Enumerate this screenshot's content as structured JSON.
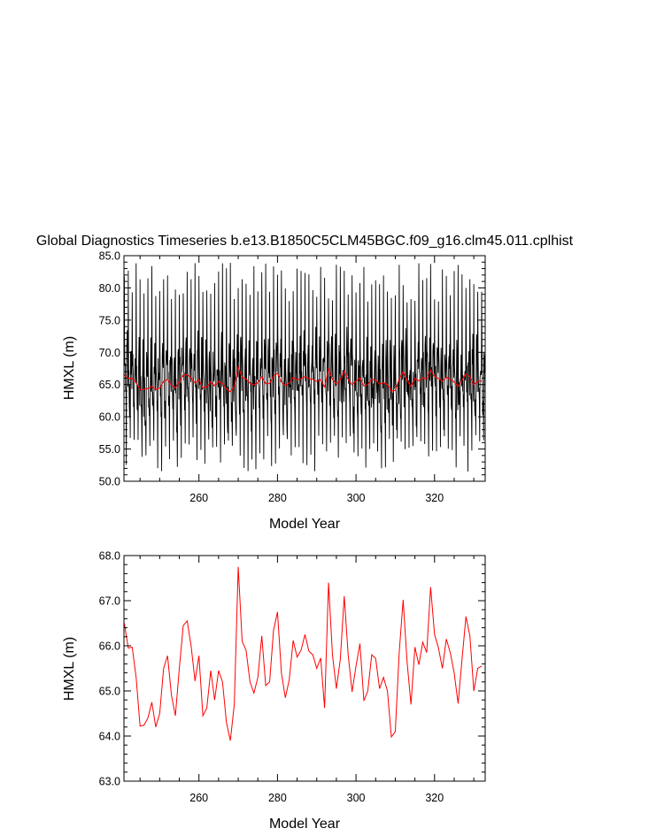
{
  "chart_data": [
    {
      "type": "line",
      "title": "Global Diagnostics Timeseries b.e13.B1850C5CLM45BGC.f09_g16.clm45.011.cplhist",
      "xlabel": "Model Year",
      "ylabel": "HMXL (m)",
      "xlim": [
        240.9,
        332.9
      ],
      "ylim": [
        50.0,
        85.0
      ],
      "x_ticks": [
        260,
        280,
        300,
        320
      ],
      "x_tick_labels": [
        "260",
        "280",
        "300",
        "320"
      ],
      "y_ticks": [
        50,
        55,
        60,
        65,
        70,
        75,
        80,
        85
      ],
      "y_tick_labels": [
        "50.0",
        "55.0",
        "60.0",
        "65.0",
        "70.0",
        "75.0",
        "80.0",
        "85.0"
      ],
      "grid": false,
      "series": [
        {
          "description": "monthly values (black)",
          "color": "#000000",
          "monthly_start_year": 241.0,
          "monthly_end_year": 332.9,
          "approx_monthly_range": [
            51.0,
            84.5
          ],
          "annual_cycle_peak_approx": [
            77.0,
            84.0
          ],
          "annual_cycle_trough_approx": [
            51.0,
            58.0
          ]
        },
        {
          "description": "annual mean (red)",
          "color": "#ff0000",
          "x": [
            241,
            242,
            243,
            244,
            245,
            246,
            247,
            248,
            249,
            250,
            251,
            252,
            253,
            254,
            255,
            256,
            257,
            258,
            259,
            260,
            261,
            262,
            263,
            264,
            265,
            266,
            267,
            268,
            269,
            270,
            271,
            272,
            273,
            274,
            275,
            276,
            277,
            278,
            279,
            280,
            281,
            282,
            283,
            284,
            285,
            286,
            287,
            288,
            289,
            290,
            291,
            292,
            293,
            294,
            295,
            296,
            297,
            298,
            299,
            300,
            301,
            302,
            303,
            304,
            305,
            306,
            307,
            308,
            309,
            310,
            311,
            312,
            313,
            314,
            315,
            316,
            317,
            318,
            319,
            320,
            321,
            322,
            323,
            324,
            325,
            326,
            327,
            328,
            329,
            330,
            331,
            332
          ],
          "values": [
            66.5,
            65.95,
            65.97,
            65.3,
            64.22,
            64.24,
            64.4,
            64.75,
            64.2,
            64.5,
            65.5,
            65.78,
            64.9,
            64.45,
            65.5,
            66.45,
            66.55,
            66.0,
            65.22,
            65.78,
            64.45,
            64.62,
            65.45,
            64.8,
            65.45,
            65.2,
            64.3,
            63.9,
            64.7,
            67.75,
            66.1,
            65.9,
            65.2,
            64.95,
            65.3,
            66.22,
            65.12,
            65.2,
            66.35,
            66.75,
            65.4,
            64.85,
            65.25,
            66.12,
            65.75,
            65.9,
            66.25,
            65.88,
            65.8,
            65.5,
            65.73,
            64.62,
            67.4,
            65.8,
            65.05,
            65.7,
            67.1,
            65.8,
            64.98,
            65.55,
            66.05,
            64.78,
            65.0,
            65.8,
            65.72,
            65.05,
            65.3,
            65.0,
            63.98,
            64.1,
            65.85,
            67.02,
            65.65,
            64.7,
            65.97,
            65.58,
            66.08,
            65.85,
            67.3,
            66.25,
            65.95,
            65.5,
            66.15,
            65.85,
            65.4,
            64.72,
            65.7,
            66.65,
            66.22,
            65.0,
            65.5,
            65.55
          ]
        }
      ]
    },
    {
      "type": "line",
      "title": "",
      "xlabel": "Model Year",
      "ylabel": "HMXL (m)",
      "xlim": [
        240.9,
        332.9
      ],
      "ylim": [
        63.0,
        68.0
      ],
      "x_ticks": [
        260,
        280,
        300,
        320
      ],
      "x_tick_labels": [
        "260",
        "280",
        "300",
        "320"
      ],
      "y_ticks": [
        63,
        64,
        65,
        66,
        67,
        68
      ],
      "y_tick_labels": [
        "63.0",
        "64.0",
        "65.0",
        "66.0",
        "67.0",
        "68.0"
      ],
      "grid": false,
      "series": [
        {
          "description": "annual mean (red)",
          "color": "#ff0000",
          "same_as_top_panel_red_series": true
        }
      ]
    }
  ]
}
